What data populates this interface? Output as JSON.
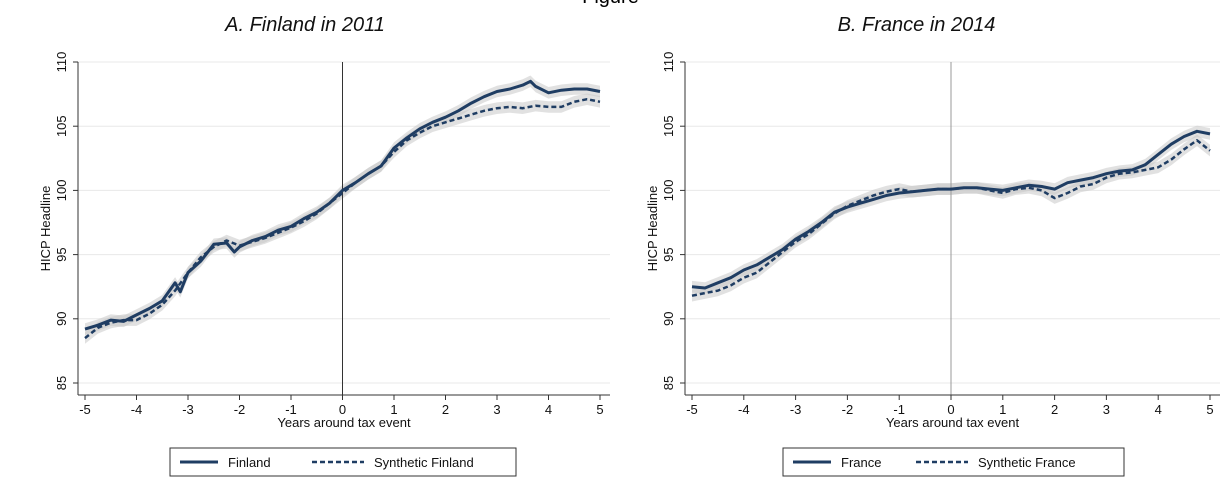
{
  "figure": {
    "title": "Figure"
  },
  "chart_data": [
    {
      "type": "line",
      "title": "A. Finland in 2011",
      "xlabel": "Years around tax event",
      "ylabel": "HICP Headline",
      "xlim": [
        -5,
        5
      ],
      "ylim": [
        85,
        110
      ],
      "xticks": [
        -5,
        -4,
        -3,
        -2,
        -1,
        0,
        1,
        2,
        3,
        4,
        5
      ],
      "yticks": [
        85,
        90,
        95,
        100,
        105,
        110
      ],
      "event_line_x": 0,
      "grid": true,
      "legend_position": "bottom",
      "colors": {
        "primary": "#1f3d63",
        "band": "#c8c8c8",
        "grid": "#e8e8e8",
        "event": "#333333"
      },
      "series": [
        {
          "name": "Finland",
          "style": "solid",
          "x": [
            -5,
            -4.75,
            -4.5,
            -4.25,
            -4,
            -3.75,
            -3.5,
            -3.25,
            -3.15,
            -3,
            -2.75,
            -2.5,
            -2.25,
            -2.1,
            -2,
            -1.75,
            -1.5,
            -1.25,
            -1,
            -0.75,
            -0.5,
            -0.25,
            0,
            0.25,
            0.5,
            0.75,
            1,
            1.25,
            1.5,
            1.75,
            2,
            2.25,
            2.5,
            2.75,
            3,
            3.25,
            3.5,
            3.65,
            3.75,
            4,
            4.25,
            4.5,
            4.75,
            5
          ],
          "values": [
            89.2,
            89.5,
            89.9,
            89.8,
            90.3,
            90.8,
            91.4,
            92.8,
            92.1,
            93.6,
            94.5,
            95.8,
            95.9,
            95.2,
            95.6,
            96.1,
            96.4,
            96.9,
            97.2,
            97.8,
            98.3,
            99.0,
            100.0,
            100.6,
            101.3,
            101.9,
            103.3,
            104.1,
            104.8,
            105.3,
            105.7,
            106.2,
            106.8,
            107.3,
            107.7,
            107.9,
            108.2,
            108.5,
            108.1,
            107.6,
            107.8,
            107.9,
            107.9,
            107.7
          ]
        },
        {
          "name": "Synthetic Finland",
          "style": "dashed",
          "x": [
            -5,
            -4.75,
            -4.5,
            -4.25,
            -4,
            -3.75,
            -3.5,
            -3.25,
            -3,
            -2.75,
            -2.5,
            -2.25,
            -2,
            -1.75,
            -1.5,
            -1.25,
            -1,
            -0.75,
            -0.5,
            -0.25,
            0,
            0.25,
            0.5,
            0.75,
            1,
            1.25,
            1.5,
            1.75,
            2,
            2.25,
            2.5,
            2.75,
            3,
            3.25,
            3.5,
            3.75,
            4,
            4.25,
            4.5,
            4.75,
            5
          ],
          "values": [
            88.5,
            89.3,
            89.7,
            89.9,
            89.9,
            90.4,
            91.1,
            92.2,
            93.6,
            94.8,
            95.6,
            96.1,
            95.7,
            96.0,
            96.3,
            96.7,
            97.1,
            97.6,
            98.2,
            99.0,
            99.8,
            100.6,
            101.3,
            101.9,
            103.0,
            103.9,
            104.5,
            105.0,
            105.3,
            105.6,
            105.9,
            106.2,
            106.4,
            106.5,
            106.4,
            106.6,
            106.5,
            106.5,
            106.9,
            107.1,
            106.9
          ]
        }
      ]
    },
    {
      "type": "line",
      "title": "B. France in 2014",
      "xlabel": "Years around tax event",
      "ylabel": "HICP Headline",
      "xlim": [
        -5,
        5
      ],
      "ylim": [
        85,
        110
      ],
      "xticks": [
        -5,
        -4,
        -3,
        -2,
        -1,
        0,
        1,
        2,
        3,
        4,
        5
      ],
      "yticks": [
        85,
        90,
        95,
        100,
        105,
        110
      ],
      "event_line_x": 0,
      "grid": true,
      "legend_position": "bottom",
      "colors": {
        "primary": "#1f3d63",
        "band": "#c8c8c8",
        "grid": "#e8e8e8",
        "event": "#999999"
      },
      "series": [
        {
          "name": "France",
          "style": "solid",
          "x": [
            -5,
            -4.75,
            -4.5,
            -4.25,
            -4,
            -3.75,
            -3.5,
            -3.25,
            -3,
            -2.75,
            -2.5,
            -2.25,
            -2,
            -1.75,
            -1.5,
            -1.25,
            -1,
            -0.75,
            -0.5,
            -0.25,
            0,
            0.25,
            0.5,
            0.75,
            1,
            1.25,
            1.5,
            1.75,
            2,
            2.25,
            2.5,
            2.75,
            3,
            3.25,
            3.5,
            3.75,
            4,
            4.25,
            4.5,
            4.75,
            5
          ],
          "values": [
            92.5,
            92.4,
            92.8,
            93.2,
            93.8,
            94.2,
            94.8,
            95.4,
            96.2,
            96.8,
            97.5,
            98.3,
            98.7,
            99.0,
            99.3,
            99.6,
            99.8,
            99.9,
            100.0,
            100.1,
            100.1,
            100.2,
            100.2,
            100.1,
            100.0,
            100.2,
            100.4,
            100.3,
            100.1,
            100.6,
            100.8,
            101.0,
            101.3,
            101.5,
            101.6,
            102.0,
            102.8,
            103.6,
            104.2,
            104.6,
            104.4
          ]
        },
        {
          "name": "Synthetic France",
          "style": "dashed",
          "x": [
            -5,
            -4.75,
            -4.5,
            -4.25,
            -4,
            -3.75,
            -3.5,
            -3.25,
            -3,
            -2.75,
            -2.5,
            -2.25,
            -2,
            -1.75,
            -1.5,
            -1.25,
            -1,
            -0.75,
            -0.5,
            -0.25,
            0,
            0.25,
            0.5,
            0.75,
            1,
            1.25,
            1.5,
            1.75,
            2,
            2.25,
            2.5,
            2.75,
            3,
            3.25,
            3.5,
            3.75,
            4,
            4.25,
            4.5,
            4.75,
            5
          ],
          "values": [
            91.8,
            92.0,
            92.2,
            92.6,
            93.2,
            93.6,
            94.4,
            95.2,
            96.0,
            96.6,
            97.4,
            98.2,
            98.8,
            99.2,
            99.6,
            99.9,
            100.1,
            99.9,
            100.0,
            100.1,
            100.1,
            100.2,
            100.2,
            100.0,
            99.8,
            100.1,
            100.2,
            100.0,
            99.4,
            99.8,
            100.3,
            100.5,
            101.0,
            101.3,
            101.4,
            101.6,
            101.8,
            102.4,
            103.2,
            103.9,
            103.1
          ]
        }
      ]
    }
  ]
}
